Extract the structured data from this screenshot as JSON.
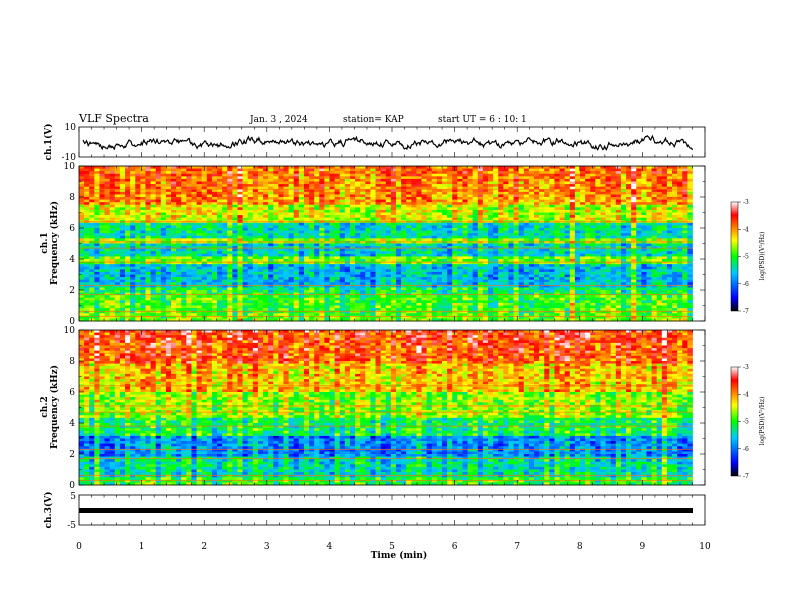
{
  "header": {
    "title": "VLF Spectra",
    "date": "Jan. 3 , 2024",
    "station": "station= KAP",
    "start": "start UT =  6 : 10: 1"
  },
  "chart_data": [
    {
      "type": "line",
      "ylabel": "ch.1(V)",
      "ylim": [
        -10,
        10
      ],
      "yticks": [
        "10",
        "-10"
      ],
      "xlim": [
        0,
        10
      ],
      "note": "noisy waveform trace"
    },
    {
      "type": "heatmap",
      "ylabel_line1": "ch.1",
      "ylabel_line2": "Frequency (kHz)",
      "ylim": [
        0,
        10
      ],
      "yticks": [
        "0",
        "2",
        "4",
        "6",
        "8",
        "10"
      ],
      "xlim": [
        0,
        9.8
      ],
      "colorbar": {
        "label": "log(PSD)(V²/Hz)",
        "range": [
          -7,
          -3
        ],
        "ticks": [
          "-3",
          "-4",
          "-5",
          "-6",
          "-7"
        ]
      }
    },
    {
      "type": "heatmap",
      "ylabel_line1": "ch.2",
      "ylabel_line2": "Frequency (kHz)",
      "ylim": [
        0,
        10
      ],
      "yticks": [
        "0",
        "2",
        "4",
        "6",
        "8",
        "10"
      ],
      "xlim": [
        0,
        9.8
      ],
      "colorbar": {
        "label": "log(PSD)(V²/Hz)",
        "range": [
          -7,
          -3
        ],
        "ticks": [
          "-3",
          "-4",
          "-5",
          "-6",
          "-7"
        ]
      }
    },
    {
      "type": "line",
      "ylabel": "ch.3(V)",
      "ylim": [
        -5,
        5
      ],
      "yticks": [
        "5",
        "-5"
      ],
      "xlim": [
        0,
        10
      ],
      "note": "thick flat trace near -1 V"
    }
  ],
  "xaxis": {
    "label": "Time (min)",
    "ticks": [
      "0",
      "1",
      "2",
      "3",
      "4",
      "5",
      "6",
      "7",
      "8",
      "9",
      "10"
    ]
  },
  "colors": {
    "colormap": [
      "#000000",
      "#0000ff",
      "#00c8ff",
      "#00ff00",
      "#ffff00",
      "#ff0000",
      "#ffffff"
    ]
  }
}
